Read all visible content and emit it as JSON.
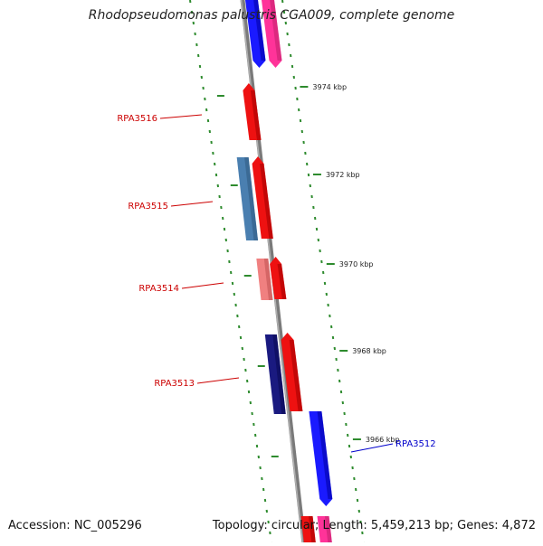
{
  "title": "Rhodopseudomonas palustris CGA009, complete genome",
  "footer": {
    "accession": "Accession: NC_005296",
    "summary": "Topology: circular; Length: 5,459,213 bp; Genes: 4,872"
  },
  "colors": {
    "backbone": "#7a7a7a",
    "tick": "#2e8b2e",
    "label_red": "#cc0000",
    "label_blue": "#0000cc",
    "red": "#ee1111",
    "pink": "#ff3399",
    "blue": "#1a1aff",
    "steelblue": "#4a7fb0",
    "lightred": "#f08080",
    "navy": "#1a1a80"
  },
  "scale_labels": [
    "3974 kbp",
    "3972 kbp",
    "3970 kbp",
    "3968 kbp",
    "3966 kbp"
  ],
  "features": [
    {
      "name": "",
      "color": "blue"
    },
    {
      "name": "",
      "color": "pink"
    },
    {
      "name": "RPA3516",
      "color": "red"
    },
    {
      "name": "",
      "color": "steelblue"
    },
    {
      "name": "RPA3515",
      "color": "red"
    },
    {
      "name": "",
      "color": "lightred"
    },
    {
      "name": "RPA3514",
      "color": "red"
    },
    {
      "name": "",
      "color": "navy"
    },
    {
      "name": "RPA3513",
      "color": "red"
    },
    {
      "name": "RPA3512",
      "color": "blue"
    },
    {
      "name": "",
      "color": "pink"
    },
    {
      "name": "",
      "color": "red"
    }
  ],
  "labels": [
    {
      "text": "RPA3516",
      "color": "label_red"
    },
    {
      "text": "RPA3515",
      "color": "label_red"
    },
    {
      "text": "RPA3514",
      "color": "label_red"
    },
    {
      "text": "RPA3513",
      "color": "label_red"
    },
    {
      "text": "RPA3512",
      "color": "label_blue"
    }
  ]
}
